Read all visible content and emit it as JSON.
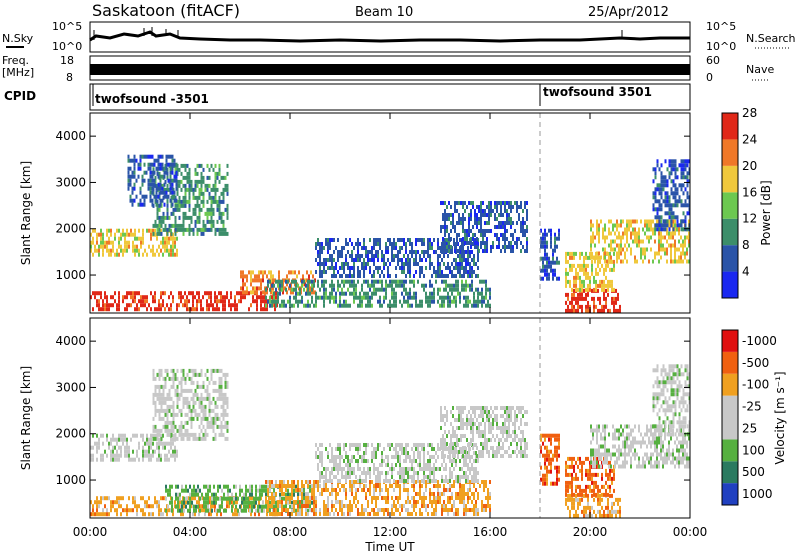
{
  "header": {
    "station": "Saskatoon (fitACF)",
    "beam": "Beam 10",
    "date": "25/Apr/2012"
  },
  "top_panels": {
    "nsky_label": "N.Sky",
    "nsearch_label": "N.Search",
    "nsky_ticks": [
      "10^5",
      "10^0"
    ],
    "nsearch_ticks": [
      "10^5",
      "10^0"
    ],
    "freq_label_1": "Freq.",
    "freq_label_2": "[MHz]",
    "freq_ticks": [
      "18",
      "8"
    ],
    "nave_label": "Nave",
    "nave_ticks": [
      "60",
      "0"
    ],
    "cpid_label": "CPID",
    "cpid_segments": [
      {
        "label": "twofsound -3501",
        "start_hour": 0
      },
      {
        "label": "twofsound 3501",
        "start_hour": 18
      }
    ]
  },
  "chart_data": [
    {
      "type": "heatmap",
      "name": "power",
      "xlabel": "Time UT",
      "ylabel": "Slant Range [km]",
      "xlim": [
        0,
        24
      ],
      "ylim": [
        180,
        4500
      ],
      "x_ticks": [
        "00:00",
        "04:00",
        "08:00",
        "12:00",
        "16:00",
        "20:00",
        "00:00"
      ],
      "y_ticks": [
        1000,
        2000,
        3000,
        4000
      ],
      "colorbar": {
        "label": "Power [dB]",
        "ticks": [
          4,
          8,
          12,
          16,
          20,
          24,
          28
        ],
        "colors": [
          "#1a28f0",
          "#2a54a8",
          "#3c8e6a",
          "#6cc850",
          "#f0c83c",
          "#f07828",
          "#e02818"
        ]
      },
      "regions": [
        {
          "t": [
            0.0,
            7.5
          ],
          "r": [
            220,
            650
          ],
          "level": 28
        },
        {
          "t": [
            6.0,
            9.0
          ],
          "r": [
            600,
            1100
          ],
          "level": 24
        },
        {
          "t": [
            0.0,
            3.5
          ],
          "r": [
            1400,
            2000
          ],
          "level": 20
        },
        {
          "t": [
            2.5,
            5.5
          ],
          "r": [
            1900,
            3400
          ],
          "level": 12
        },
        {
          "t": [
            1.5,
            3.5
          ],
          "r": [
            2500,
            3600
          ],
          "level": 8
        },
        {
          "t": [
            7.0,
            16.0
          ],
          "r": [
            300,
            900
          ],
          "level": 12
        },
        {
          "t": [
            9.0,
            15.5
          ],
          "r": [
            1000,
            1800
          ],
          "level": 8
        },
        {
          "t": [
            14.0,
            17.5
          ],
          "r": [
            1500,
            2600
          ],
          "level": 8
        },
        {
          "t": [
            18.0,
            18.8
          ],
          "r": [
            900,
            2000
          ],
          "level": 8
        },
        {
          "t": [
            19.0,
            21.2
          ],
          "r": [
            250,
            700
          ],
          "level": 28
        },
        {
          "t": [
            19.0,
            21.0
          ],
          "r": [
            700,
            1500
          ],
          "level": 20
        },
        {
          "t": [
            20.0,
            24.0
          ],
          "r": [
            1300,
            2200
          ],
          "level": 20
        },
        {
          "t": [
            22.5,
            24.0
          ],
          "r": [
            2000,
            3500
          ],
          "level": 8
        }
      ]
    },
    {
      "type": "heatmap",
      "name": "velocity",
      "xlabel": "Time UT",
      "ylabel": "Slant Range [km]",
      "xlim": [
        0,
        24
      ],
      "ylim": [
        180,
        4500
      ],
      "x_ticks": [
        "00:00",
        "04:00",
        "08:00",
        "12:00",
        "16:00",
        "20:00",
        "00:00"
      ],
      "y_ticks": [
        1000,
        2000,
        3000,
        4000
      ],
      "colorbar": {
        "label": "Velocity [m s⁻¹]",
        "ticks": [
          1000,
          500,
          100,
          25,
          -25,
          -100,
          -500,
          -1000
        ],
        "colors": [
          "#2040c0",
          "#2a7a60",
          "#56b040",
          "#c8c8c8",
          "#c8c8c8",
          "#f0a020",
          "#f06010",
          "#e01010"
        ]
      },
      "regions": [
        {
          "t": [
            0.0,
            7.5
          ],
          "r": [
            220,
            650
          ],
          "level": -100
        },
        {
          "t": [
            3.0,
            9.0
          ],
          "r": [
            300,
            900
          ],
          "level": 100
        },
        {
          "t": [
            0.0,
            3.5
          ],
          "r": [
            1400,
            2000
          ],
          "level": 25
        },
        {
          "t": [
            2.5,
            5.5
          ],
          "r": [
            1900,
            3400
          ],
          "level": 25
        },
        {
          "t": [
            7.0,
            16.0
          ],
          "r": [
            300,
            1000
          ],
          "level": -100
        },
        {
          "t": [
            9.0,
            15.5
          ],
          "r": [
            1000,
            1800
          ],
          "level": 25
        },
        {
          "t": [
            14.0,
            17.5
          ],
          "r": [
            1500,
            2600
          ],
          "level": 25
        },
        {
          "t": [
            18.0,
            18.8
          ],
          "r": [
            900,
            2000
          ],
          "level": -500
        },
        {
          "t": [
            19.0,
            21.2
          ],
          "r": [
            250,
            700
          ],
          "level": -100
        },
        {
          "t": [
            19.0,
            21.0
          ],
          "r": [
            700,
            1500
          ],
          "level": -500
        },
        {
          "t": [
            20.0,
            24.0
          ],
          "r": [
            1300,
            2200
          ],
          "level": 25
        },
        {
          "t": [
            22.5,
            24.0
          ],
          "r": [
            2000,
            3500
          ],
          "level": 25
        }
      ]
    }
  ]
}
